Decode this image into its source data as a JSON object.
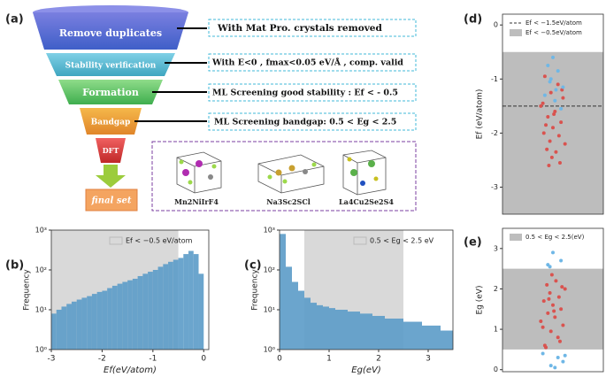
{
  "panel_labels": [
    "(a)",
    "(b)",
    "(c)",
    "(d)",
    "(e)"
  ],
  "funnel": {
    "stages": [
      "Remove duplicates",
      "Stability verification",
      "Formation",
      "Bandgap",
      "DFT"
    ],
    "final": "final set"
  },
  "notes": [
    "With Mat Pro. crystals removed",
    "With E<0 , fmax<0.05 eV/Å , comp. valid",
    "ML Screening good stability : Ef < - 0.5",
    "ML Screening bandgap: 0.5 < Eg <  2.5"
  ],
  "structures": [
    "Mn2NiIrF4",
    "Na3Sc2SCl",
    "La4Cu2Se2S4"
  ],
  "chart_data": [
    {
      "type": "histogram",
      "xlabel": "Ef(eV/atom)",
      "ylabel": "Frequency",
      "color": "#5b9bc8",
      "log_y": true,
      "bins": [
        -3,
        -2.9,
        -2.8,
        -2.7,
        -2.6,
        -2.5,
        -2.4,
        -2.3,
        -2.2,
        -2.1,
        -2,
        -1.9,
        -1.8,
        -1.7,
        -1.6,
        -1.5,
        -1.4,
        -1.3,
        -1.2,
        -1.1,
        -1,
        -0.9,
        -0.8,
        -0.7,
        -0.6,
        -0.5,
        -0.4,
        -0.3,
        -0.2,
        -0.1,
        0
      ],
      "values": [
        8,
        10,
        12,
        14,
        16,
        18,
        20,
        22,
        25,
        28,
        30,
        35,
        40,
        45,
        50,
        55,
        60,
        70,
        80,
        90,
        100,
        120,
        140,
        160,
        180,
        200,
        250,
        300,
        250,
        80
      ],
      "xlim": [
        -3,
        0.1
      ],
      "xticks": [
        -3,
        -2,
        -1,
        0
      ],
      "ylim": [
        1,
        1000
      ],
      "yticks": [
        {
          "value": 1,
          "label": "10⁰"
        },
        {
          "value": 10,
          "label": "10¹"
        },
        {
          "value": 100,
          "label": "10²"
        },
        {
          "value": 1000,
          "label": "10³"
        }
      ],
      "shaded_span": [
        -3,
        -0.5
      ],
      "shaded_label": "Ef < −0.5 eV/atom",
      "shade_color": "#d9d9d9"
    },
    {
      "type": "histogram",
      "xlabel": "Eg(eV)",
      "ylabel": "Frequency",
      "color": "#5b9bc8",
      "log_y": true,
      "bins": [
        0,
        0.125,
        0.25,
        0.375,
        0.5,
        0.625,
        0.75,
        0.875,
        1,
        1.125,
        1.25,
        1.375,
        1.5,
        1.625,
        1.75,
        1.875,
        2,
        2.125,
        2.25,
        2.375,
        2.5,
        2.625,
        2.75,
        2.875,
        3,
        3.125,
        3.25,
        3.375,
        3.5
      ],
      "values": [
        800,
        120,
        50,
        30,
        20,
        15,
        13,
        12,
        11,
        10,
        10,
        9,
        9,
        8,
        8,
        7,
        7,
        6,
        6,
        6,
        5,
        5,
        5,
        4,
        4,
        4,
        3,
        3
      ],
      "xlim": [
        0,
        3.5
      ],
      "xticks": [
        0,
        1,
        2,
        3
      ],
      "ylim": [
        1,
        1000
      ],
      "yticks": [
        {
          "value": 1,
          "label": "10⁰"
        },
        {
          "value": 10,
          "label": "10¹"
        },
        {
          "value": 100,
          "label": "10²"
        },
        {
          "value": 1000,
          "label": "10³"
        }
      ],
      "shaded_span": [
        0.5,
        2.5
      ],
      "shaded_label": "0.5 < Eg < 2.5 eV",
      "shade_color": "#d9d9d9"
    },
    {
      "type": "scatter",
      "ylabel": "Ef (eV/atom)",
      "xlim": [
        0,
        1
      ],
      "ylim": [
        -3.5,
        0.2
      ],
      "yticks": [
        -3,
        -2,
        -1,
        0
      ],
      "shaded_span": [
        -3.5,
        -0.5
      ],
      "shaded_label": "Ef < −0.5eV/atom",
      "shade_color": "#bdbdbd",
      "hline": {
        "value": -1.5,
        "label": "Ef < −1.5eV/atom"
      },
      "series": [
        {
          "color": "#d9534f",
          "x": [
            0.42,
            0.55,
            0.48,
            0.6,
            0.38,
            0.52,
            0.45,
            0.58,
            0.5,
            0.41,
            0.56,
            0.47,
            0.62,
            0.44,
            0.53,
            0.49,
            0.57,
            0.4,
            0.51,
            0.46,
            0.59,
            0.43
          ],
          "values": [
            -0.95,
            -1.1,
            -1.25,
            -1.35,
            -1.5,
            -1.6,
            -1.7,
            -1.8,
            -1.9,
            -2,
            -2.05,
            -2.15,
            -2.2,
            -2.3,
            -2.35,
            -2.45,
            -2.55,
            -1.45,
            -1.65,
            -2.6,
            -1.2,
            -1.85
          ]
        },
        {
          "color": "#6fb7e6",
          "x": [
            0.5,
            0.45,
            0.55,
            0.48,
            0.6,
            0.42,
            0.52,
            0.58,
            0.47,
            0.53
          ],
          "values": [
            -0.6,
            -0.75,
            -0.85,
            -1,
            -1.15,
            -1.3,
            -1.4,
            -1.55,
            -1.05,
            -1.2
          ]
        }
      ]
    },
    {
      "type": "scatter",
      "ylabel": "Eg (eV)",
      "xlim": [
        0,
        1
      ],
      "ylim": [
        -0.05,
        3.5
      ],
      "yticks": [
        0,
        1,
        2,
        3
      ],
      "shaded_span": [
        0.5,
        2.5
      ],
      "shaded_label": "0.5 < Eg < 2.5(eV)",
      "shade_color": "#bdbdbd",
      "series": [
        {
          "color": "#d9534f",
          "x": [
            0.42,
            0.55,
            0.48,
            0.6,
            0.38,
            0.52,
            0.45,
            0.58,
            0.5,
            0.41,
            0.56,
            0.47,
            0.62,
            0.44,
            0.53,
            0.49,
            0.57,
            0.4,
            0.51,
            0.46,
            0.59,
            0.43
          ],
          "values": [
            0.6,
            0.8,
            0.95,
            1.1,
            1.2,
            1.3,
            1.4,
            1.5,
            1.6,
            1.7,
            1.8,
            1.9,
            2,
            2.1,
            2.2,
            2.35,
            0.7,
            1.05,
            1.45,
            1.75,
            2.05,
            0.55
          ]
        },
        {
          "color": "#6fb7e6",
          "x": [
            0.5,
            0.58,
            0.45,
            0.4,
            0.55,
            0.6,
            0.48,
            0.52,
            0.62,
            0.47
          ],
          "values": [
            2.9,
            2.7,
            2.6,
            0.4,
            0.3,
            0.2,
            0.1,
            0.05,
            0.35,
            2.55
          ]
        }
      ]
    }
  ]
}
